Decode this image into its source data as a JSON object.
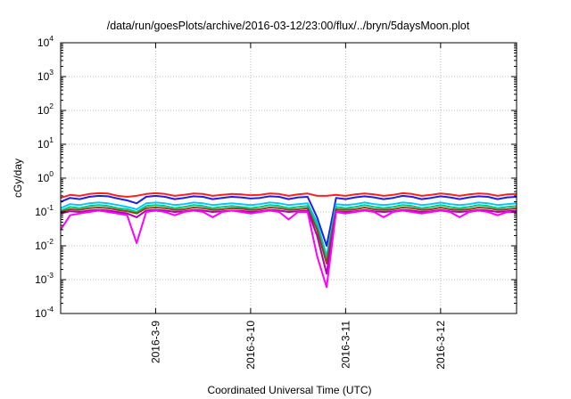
{
  "chart_data": {
    "type": "line",
    "title": "/data/run/goesPlots/archive/2016-03-12/23:00/flux/../bryn/5daysMoon.plot",
    "xlabel": "Coordinated Universal Time (UTC)",
    "ylabel": "cGy/day",
    "yscale": "log",
    "ylim": [
      0.0001,
      10000
    ],
    "y_ticks": [
      {
        "base": "10",
        "exp": "-4"
      },
      {
        "base": "10",
        "exp": "-3"
      },
      {
        "base": "10",
        "exp": "-2"
      },
      {
        "base": "10",
        "exp": "-1"
      },
      {
        "base": "10",
        "exp": "0"
      },
      {
        "base": "10",
        "exp": "1"
      },
      {
        "base": "10",
        "exp": "2"
      },
      {
        "base": "10",
        "exp": "3"
      },
      {
        "base": "10",
        "exp": "4"
      }
    ],
    "x_unit": "day",
    "xlim": [
      0,
      4.8
    ],
    "x_ticks": [
      {
        "x": 1,
        "label": "2016-3-9"
      },
      {
        "x": 2,
        "label": "2016-3-10"
      },
      {
        "x": 3,
        "label": "2016-3-11"
      },
      {
        "x": 4,
        "label": "2016-3-12"
      }
    ],
    "grid": true,
    "grid_style": "dotted",
    "legend": "none",
    "x": [
      0,
      0.1,
      0.2,
      0.3,
      0.4,
      0.5,
      0.6,
      0.7,
      0.8,
      0.9,
      1.0,
      1.1,
      1.2,
      1.3,
      1.4,
      1.5,
      1.6,
      1.7,
      1.8,
      1.9,
      2.0,
      2.1,
      2.2,
      2.3,
      2.4,
      2.5,
      2.6,
      2.7,
      2.8,
      2.9,
      3.0,
      3.1,
      3.2,
      3.3,
      3.4,
      3.5,
      3.6,
      3.7,
      3.8,
      3.9,
      4.0,
      4.1,
      4.2,
      4.3,
      4.4,
      4.5,
      4.6,
      4.7,
      4.8
    ],
    "series": [
      {
        "color": "#ff2020",
        "values": [
          0.26,
          0.32,
          0.3,
          0.34,
          0.36,
          0.35,
          0.3,
          0.28,
          0.3,
          0.34,
          0.36,
          0.34,
          0.3,
          0.32,
          0.35,
          0.34,
          0.3,
          0.32,
          0.34,
          0.33,
          0.31,
          0.32,
          0.35,
          0.34,
          0.3,
          0.33,
          0.35,
          0.3,
          0.3,
          0.32,
          0.3,
          0.33,
          0.35,
          0.33,
          0.3,
          0.32,
          0.36,
          0.34,
          0.3,
          0.32,
          0.35,
          0.33,
          0.3,
          0.33,
          0.35,
          0.34,
          0.3,
          0.33,
          0.34
        ]
      },
      {
        "color": "#2020e0",
        "values": [
          0.2,
          0.26,
          0.24,
          0.28,
          0.3,
          0.29,
          0.25,
          0.22,
          0.18,
          0.28,
          0.3,
          0.28,
          0.24,
          0.26,
          0.29,
          0.28,
          0.24,
          0.26,
          0.28,
          0.27,
          0.25,
          0.26,
          0.29,
          0.28,
          0.24,
          0.27,
          0.28,
          0.07,
          0.01,
          0.26,
          0.24,
          0.27,
          0.29,
          0.27,
          0.24,
          0.26,
          0.3,
          0.28,
          0.24,
          0.26,
          0.29,
          0.27,
          0.24,
          0.27,
          0.29,
          0.28,
          0.24,
          0.27,
          0.28
        ]
      },
      {
        "color": "#00c8ff",
        "values": [
          0.13,
          0.17,
          0.16,
          0.18,
          0.19,
          0.18,
          0.16,
          0.14,
          0.12,
          0.18,
          0.19,
          0.18,
          0.16,
          0.17,
          0.19,
          0.18,
          0.16,
          0.17,
          0.18,
          0.17,
          0.16,
          0.17,
          0.19,
          0.18,
          0.16,
          0.17,
          0.18,
          0.05,
          0.005,
          0.17,
          0.16,
          0.17,
          0.19,
          0.17,
          0.16,
          0.17,
          0.19,
          0.18,
          0.16,
          0.17,
          0.19,
          0.17,
          0.16,
          0.17,
          0.19,
          0.18,
          0.16,
          0.17,
          0.18
        ]
      },
      {
        "color": "#00c878",
        "values": [
          0.11,
          0.14,
          0.13,
          0.15,
          0.16,
          0.15,
          0.13,
          0.12,
          0.1,
          0.15,
          0.16,
          0.15,
          0.13,
          0.14,
          0.16,
          0.15,
          0.13,
          0.14,
          0.15,
          0.14,
          0.13,
          0.14,
          0.16,
          0.15,
          0.13,
          0.14,
          0.15,
          0.04,
          0.004,
          0.14,
          0.13,
          0.14,
          0.16,
          0.14,
          0.13,
          0.14,
          0.16,
          0.15,
          0.13,
          0.14,
          0.16,
          0.14,
          0.13,
          0.14,
          0.16,
          0.15,
          0.13,
          0.14,
          0.15
        ]
      },
      {
        "color": "#8b4513",
        "values": [
          0.1,
          0.12,
          0.115,
          0.13,
          0.135,
          0.13,
          0.115,
          0.105,
          0.09,
          0.13,
          0.135,
          0.13,
          0.115,
          0.12,
          0.135,
          0.13,
          0.115,
          0.12,
          0.13,
          0.125,
          0.115,
          0.12,
          0.135,
          0.13,
          0.115,
          0.12,
          0.13,
          0.03,
          0.003,
          0.12,
          0.115,
          0.12,
          0.135,
          0.12,
          0.115,
          0.12,
          0.135,
          0.13,
          0.115,
          0.12,
          0.135,
          0.12,
          0.115,
          0.12,
          0.135,
          0.13,
          0.115,
          0.12,
          0.13
        ]
      },
      {
        "color": "#b000b0",
        "values": [
          0.09,
          0.105,
          0.1,
          0.11,
          0.115,
          0.11,
          0.1,
          0.09,
          0.07,
          0.11,
          0.115,
          0.11,
          0.1,
          0.105,
          0.115,
          0.11,
          0.1,
          0.105,
          0.11,
          0.108,
          0.1,
          0.105,
          0.115,
          0.11,
          0.1,
          0.105,
          0.11,
          0.02,
          0.0015,
          0.105,
          0.1,
          0.105,
          0.115,
          0.105,
          0.1,
          0.105,
          0.115,
          0.11,
          0.1,
          0.105,
          0.115,
          0.105,
          0.1,
          0.105,
          0.115,
          0.11,
          0.1,
          0.105,
          0.11
        ]
      },
      {
        "color": "#ff00ff",
        "values": [
          0.03,
          0.08,
          0.09,
          0.1,
          0.11,
          0.1,
          0.09,
          0.08,
          0.012,
          0.1,
          0.11,
          0.1,
          0.08,
          0.1,
          0.11,
          0.1,
          0.07,
          0.1,
          0.11,
          0.1,
          0.09,
          0.1,
          0.11,
          0.1,
          0.06,
          0.1,
          0.1,
          0.005,
          0.0006,
          0.1,
          0.09,
          0.1,
          0.11,
          0.1,
          0.07,
          0.1,
          0.11,
          0.1,
          0.09,
          0.1,
          0.11,
          0.1,
          0.07,
          0.1,
          0.11,
          0.1,
          0.08,
          0.1,
          0.1
        ]
      }
    ]
  }
}
